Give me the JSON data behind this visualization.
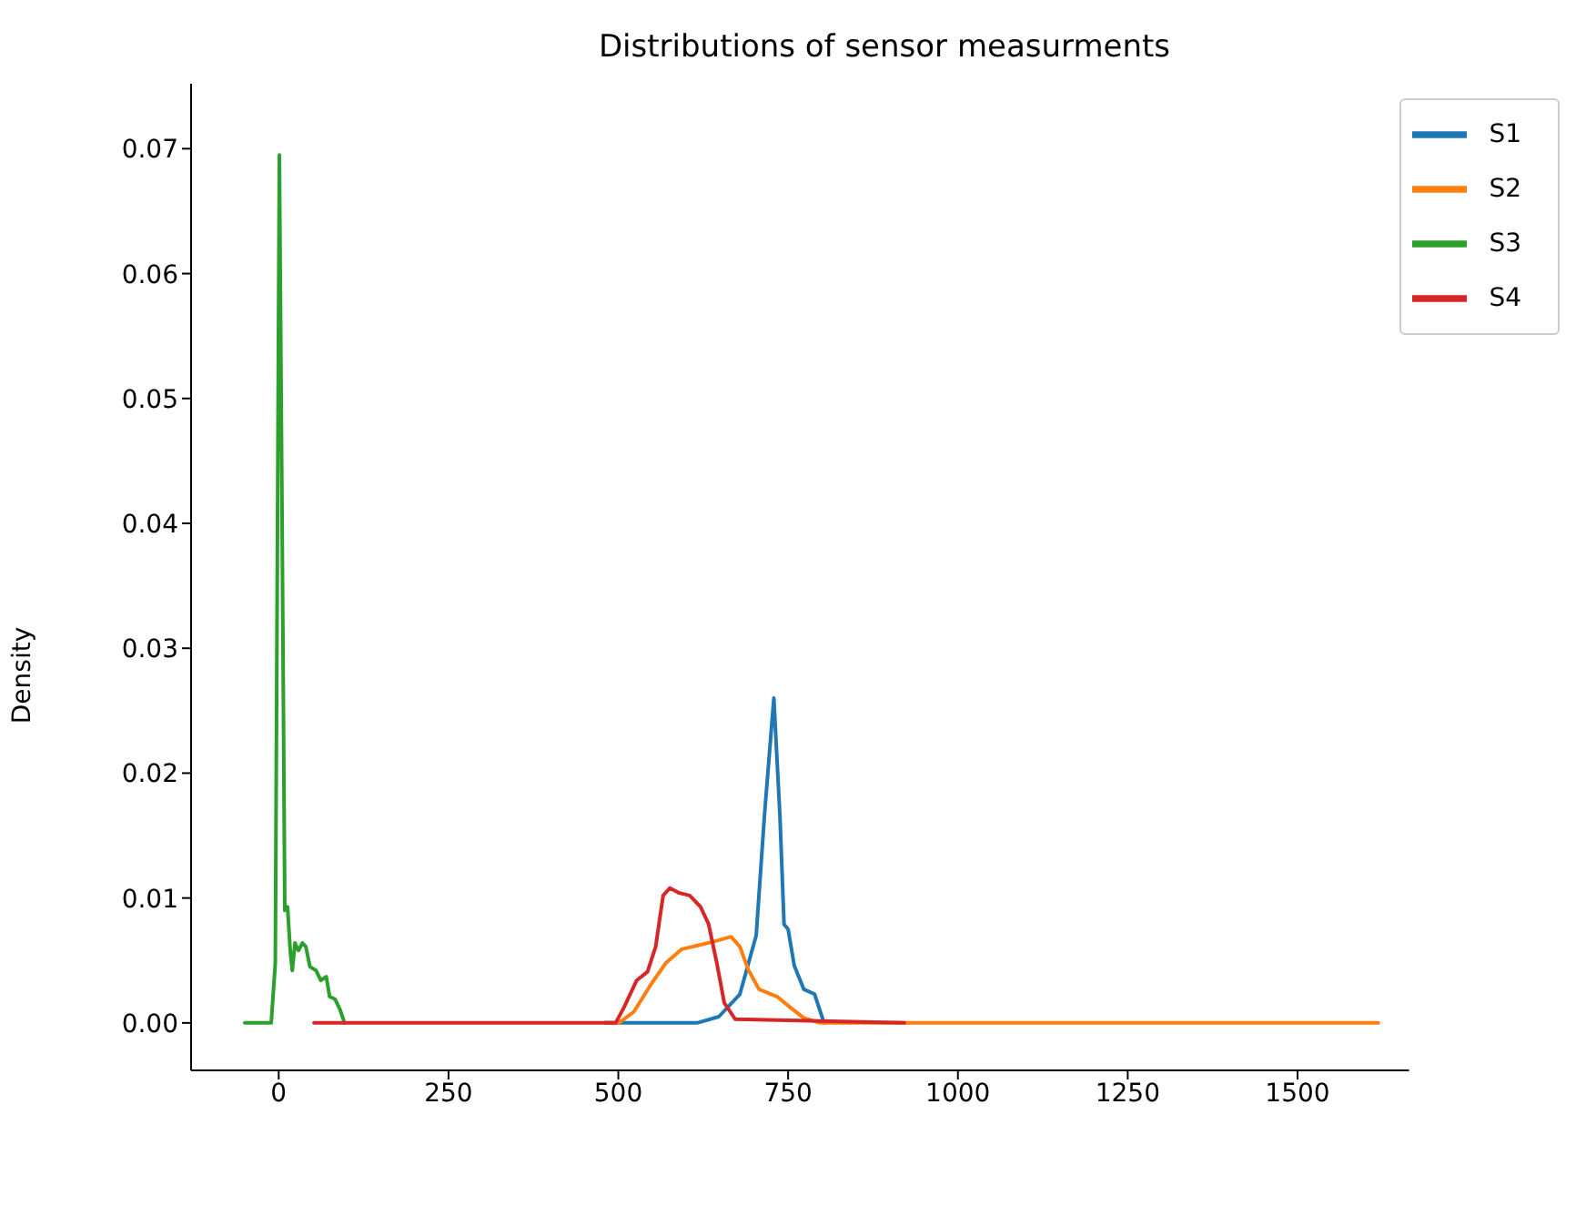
{
  "chart_data": {
    "type": "line",
    "title": "Distributions of sensor measurments",
    "ylabel": "Density",
    "xlim": [
      -129,
      1664
    ],
    "xticks": [
      0,
      250,
      500,
      750,
      1000,
      1250,
      1500
    ],
    "ylim": [
      -0.0038,
      0.0752
    ],
    "yticks": [
      {
        "value": 0,
        "label": "0.00"
      },
      {
        "value": 0.01,
        "label": "0.01"
      },
      {
        "value": 0.02,
        "label": "0.02"
      },
      {
        "value": 0.03,
        "label": "0.03"
      },
      {
        "value": 0.04,
        "label": "0.04"
      },
      {
        "value": 0.05,
        "label": "0.05"
      },
      {
        "value": 0.06,
        "label": "0.06"
      },
      {
        "value": 0.07,
        "label": "0.07"
      }
    ],
    "grid": false,
    "legend": "top right",
    "line_style": "solid",
    "marker": "none",
    "series": [
      {
        "name": "S1",
        "color": "#1f77b4",
        "x": [
          480,
          616,
          648,
          679,
          703,
          715,
          729,
          738,
          744,
          750,
          759,
          773,
          789,
          801,
          803
        ],
        "values": [
          0,
          0,
          0.0005,
          0.0023,
          0.007,
          0.0165,
          0.026,
          0.0165,
          0.0079,
          0.0075,
          0.0046,
          0.0027,
          0.0023,
          0.0003,
          0
        ]
      },
      {
        "name": "S2",
        "color": "#ff7f0e",
        "x": [
          480,
          501,
          523,
          547,
          570,
          593,
          617,
          640,
          666,
          679,
          691,
          707,
          734,
          754,
          773,
          797,
          1619
        ],
        "values": [
          0,
          0,
          0.0009,
          0.003,
          0.0048,
          0.0059,
          0.0062,
          0.0065,
          0.0069,
          0.0061,
          0.0043,
          0.0027,
          0.0021,
          0.0012,
          0.0004,
          0,
          0
        ]
      },
      {
        "name": "S3",
        "color": "#2ca02c",
        "x": [
          -50,
          -11,
          -5,
          1,
          5.5,
          9,
          13,
          17,
          20,
          24,
          29,
          35,
          40,
          46,
          55,
          62,
          70,
          75,
          83,
          90,
          97
        ],
        "values": [
          0,
          0,
          0.0048,
          0.0695,
          0.0366,
          0.009,
          0.0093,
          0.0058,
          0.0042,
          0.0064,
          0.0058,
          0.0064,
          0.0061,
          0.0045,
          0.0042,
          0.0034,
          0.0037,
          0.0021,
          0.0019,
          0.0011,
          0
        ]
      },
      {
        "name": "S4",
        "color": "#d62728",
        "x": [
          52,
          496,
          508,
          527,
          543,
          555,
          566,
          576,
          590,
          605,
          621,
          633,
          645,
          656,
          672,
          921
        ],
        "values": [
          0,
          0,
          0.0012,
          0.0034,
          0.0041,
          0.0061,
          0.0102,
          0.0108,
          0.0104,
          0.0102,
          0.0093,
          0.0079,
          0.0048,
          0.0016,
          0.0003,
          0
        ]
      }
    ]
  }
}
